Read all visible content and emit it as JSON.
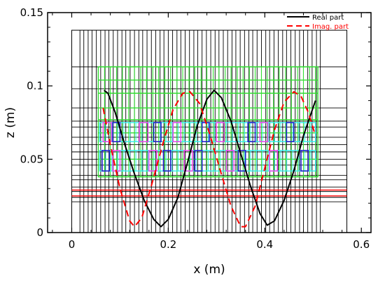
{
  "chart_data": {
    "type": "line",
    "title": "",
    "xlabel": "x (m)",
    "ylabel": "z (m)",
    "xlim": [
      -0.05,
      0.62
    ],
    "ylim": [
      0,
      0.15
    ],
    "xticks": [
      "0",
      "0.2",
      "0.4",
      "0.6"
    ],
    "yticks": [
      "0",
      "0.05",
      "0.1",
      "0.15"
    ],
    "xtick_values": [
      0,
      0.2,
      0.4,
      0.6
    ],
    "ytick_values": [
      0,
      0.05,
      0.1,
      0.15
    ],
    "legend_position": "top-right",
    "series": [
      {
        "name": "Real part",
        "color": "#000000",
        "style": "solid",
        "points": [
          [
            0.067,
            0.097
          ],
          [
            0.075,
            0.095
          ],
          [
            0.09,
            0.082
          ],
          [
            0.11,
            0.06
          ],
          [
            0.13,
            0.04
          ],
          [
            0.15,
            0.022
          ],
          [
            0.17,
            0.009
          ],
          [
            0.185,
            0.004
          ],
          [
            0.2,
            0.009
          ],
          [
            0.22,
            0.024
          ],
          [
            0.24,
            0.048
          ],
          [
            0.26,
            0.073
          ],
          [
            0.28,
            0.091
          ],
          [
            0.295,
            0.097
          ],
          [
            0.31,
            0.092
          ],
          [
            0.33,
            0.076
          ],
          [
            0.35,
            0.054
          ],
          [
            0.37,
            0.032
          ],
          [
            0.39,
            0.013
          ],
          [
            0.405,
            0.005
          ],
          [
            0.42,
            0.008
          ],
          [
            0.44,
            0.022
          ],
          [
            0.46,
            0.042
          ],
          [
            0.48,
            0.066
          ],
          [
            0.505,
            0.09
          ]
        ]
      },
      {
        "name": "Imag. part",
        "color": "#ff0000",
        "style": "dashed",
        "points": [
          [
            0.065,
            0.085
          ],
          [
            0.08,
            0.06
          ],
          [
            0.1,
            0.03
          ],
          [
            0.12,
            0.008
          ],
          [
            0.13,
            0.004
          ],
          [
            0.145,
            0.01
          ],
          [
            0.165,
            0.032
          ],
          [
            0.19,
            0.062
          ],
          [
            0.21,
            0.084
          ],
          [
            0.23,
            0.095
          ],
          [
            0.245,
            0.096
          ],
          [
            0.265,
            0.088
          ],
          [
            0.285,
            0.068
          ],
          [
            0.31,
            0.04
          ],
          [
            0.33,
            0.018
          ],
          [
            0.35,
            0.004
          ],
          [
            0.36,
            0.004
          ],
          [
            0.38,
            0.018
          ],
          [
            0.4,
            0.044
          ],
          [
            0.42,
            0.07
          ],
          [
            0.44,
            0.089
          ],
          [
            0.46,
            0.096
          ],
          [
            0.475,
            0.093
          ],
          [
            0.49,
            0.082
          ],
          [
            0.505,
            0.066
          ]
        ]
      }
    ],
    "structure": {
      "outer_box": [
        0,
        0.57,
        0,
        0.138
      ],
      "vertical_divisions": [
        0.017,
        0.025,
        0.034,
        0.042,
        0.051,
        0.06,
        0.069,
        0.077,
        0.086,
        0.095,
        0.104,
        0.112,
        0.121,
        0.13,
        0.139,
        0.147,
        0.156,
        0.165,
        0.174,
        0.183,
        0.191,
        0.2,
        0.209,
        0.218,
        0.226,
        0.235,
        0.244,
        0.253,
        0.261,
        0.27,
        0.279,
        0.288,
        0.297,
        0.305,
        0.314,
        0.323,
        0.332,
        0.34,
        0.349,
        0.358,
        0.367,
        0.375,
        0.384,
        0.393,
        0.402,
        0.41,
        0.419,
        0.428,
        0.437,
        0.445,
        0.454,
        0.463,
        0.472,
        0.48,
        0.489,
        0.498,
        0.507,
        0.515
      ],
      "black_layers": [
        0.021,
        0.024,
        0.028,
        0.031,
        0.036,
        0.039,
        0.046,
        0.05,
        0.055,
        0.06,
        0.065,
        0.072,
        0.076,
        0.085,
        0.098,
        0.113
      ],
      "red_layers": [
        0.025,
        0.029
      ],
      "green_box": [
        0.055,
        0.51,
        0.038,
        0.113
      ],
      "green_lines_z": [
        0.038,
        0.05,
        0.068,
        0.077,
        0.085,
        0.095,
        0.104,
        0.113
      ],
      "green_lines_x": [
        0.055,
        0.068,
        0.08,
        0.093,
        0.105,
        0.118,
        0.13,
        0.143,
        0.155,
        0.168,
        0.18,
        0.193,
        0.205,
        0.218,
        0.23,
        0.243,
        0.255,
        0.268,
        0.28,
        0.293,
        0.305,
        0.318,
        0.33,
        0.343,
        0.355,
        0.368,
        0.38,
        0.393,
        0.405,
        0.418,
        0.43,
        0.443,
        0.455,
        0.468,
        0.48,
        0.493,
        0.505
      ],
      "cyan_bands": [
        [
          0.058,
          0.505,
          0.042,
          0.056
        ],
        [
          0.058,
          0.505,
          0.062,
          0.075
        ]
      ],
      "blue_cells": [
        [
          0.063,
          0.078,
          0.042,
          0.056
        ],
        [
          0.085,
          0.1,
          0.062,
          0.075
        ],
        [
          0.17,
          0.185,
          0.062,
          0.075
        ],
        [
          0.19,
          0.205,
          0.042,
          0.056
        ],
        [
          0.255,
          0.27,
          0.042,
          0.056
        ],
        [
          0.27,
          0.285,
          0.062,
          0.075
        ],
        [
          0.345,
          0.36,
          0.042,
          0.056
        ],
        [
          0.365,
          0.38,
          0.062,
          0.075
        ],
        [
          0.445,
          0.46,
          0.062,
          0.075
        ],
        [
          0.475,
          0.49,
          0.042,
          0.056
        ]
      ],
      "magenta_cells": [
        [
          0.065,
          0.082,
          0.062,
          0.075
        ],
        [
          0.085,
          0.1,
          0.042,
          0.056
        ],
        [
          0.14,
          0.158,
          0.062,
          0.075
        ],
        [
          0.16,
          0.176,
          0.042,
          0.056
        ],
        [
          0.21,
          0.226,
          0.062,
          0.075
        ],
        [
          0.233,
          0.25,
          0.042,
          0.056
        ],
        [
          0.3,
          0.316,
          0.062,
          0.075
        ],
        [
          0.32,
          0.336,
          0.042,
          0.056
        ],
        [
          0.39,
          0.406,
          0.062,
          0.075
        ],
        [
          0.41,
          0.426,
          0.042,
          0.056
        ]
      ]
    }
  }
}
